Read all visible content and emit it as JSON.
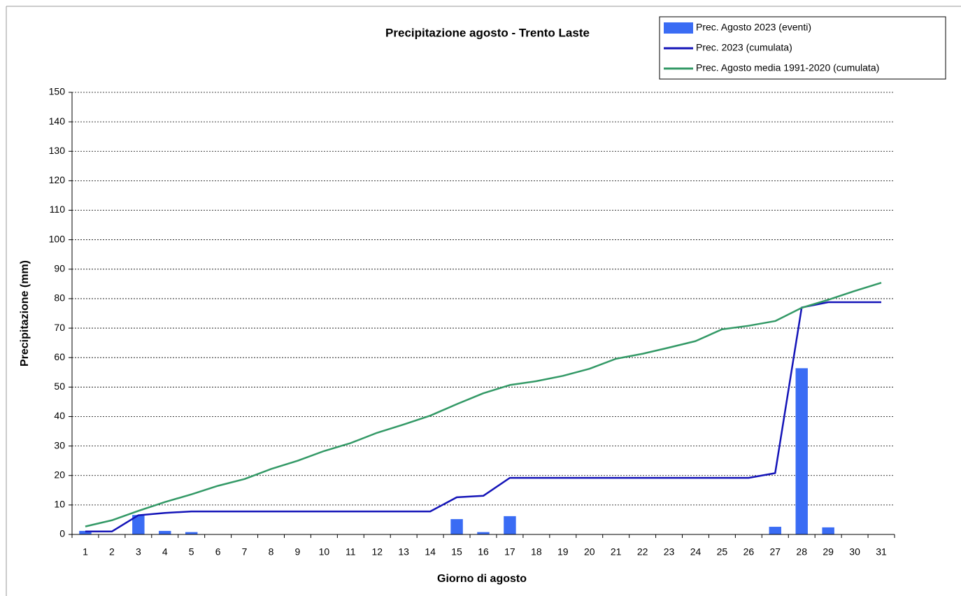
{
  "chart_data": {
    "type": "bar-line",
    "title": "Precipitazione agosto - Trento Laste",
    "x_label": "Giorno di agosto",
    "y_label": "Precipitazione (mm)",
    "categories": [
      "1",
      "2",
      "3",
      "4",
      "5",
      "6",
      "7",
      "8",
      "9",
      "10",
      "11",
      "12",
      "13",
      "14",
      "15",
      "16",
      "17",
      "18",
      "19",
      "20",
      "21",
      "22",
      "23",
      "24",
      "25",
      "26",
      "27",
      "28",
      "29",
      "30",
      "31"
    ],
    "series": [
      {
        "name": "Prec. Agosto 2023 (eventi)",
        "kind": "bar",
        "color": "#3a6cf4",
        "values": [
          1.2,
          0,
          6.6,
          1.2,
          0.8,
          0,
          0,
          0,
          0,
          0,
          0,
          0,
          0,
          0,
          5.2,
          0.8,
          6.2,
          0,
          0,
          0,
          0,
          0,
          0,
          0,
          0,
          0,
          2.6,
          56.4,
          2.4,
          0,
          0
        ]
      },
      {
        "name": "Prec. 2023 (cumulata)",
        "kind": "line",
        "color": "#1414b8",
        "values": [
          1.0,
          1.0,
          6.5,
          7.3,
          7.8,
          7.8,
          7.8,
          7.8,
          7.8,
          7.8,
          7.8,
          7.8,
          7.8,
          7.8,
          12.6,
          13.1,
          19.2,
          19.2,
          19.2,
          19.2,
          19.2,
          19.2,
          19.2,
          19.2,
          19.2,
          19.2,
          20.8,
          77.0,
          78.8,
          78.8,
          78.8
        ]
      },
      {
        "name": "Prec. Agosto media 1991-2020 (cumulata)",
        "kind": "line",
        "color": "#339966",
        "values": [
          2.7,
          4.8,
          8.0,
          11.0,
          13.6,
          16.5,
          18.8,
          22.2,
          25.0,
          28.3,
          31.0,
          34.5,
          37.3,
          40.3,
          44.2,
          47.9,
          50.7,
          52.0,
          53.8,
          56.2,
          59.6,
          61.3,
          63.4,
          65.6,
          69.6,
          70.8,
          72.4,
          76.9,
          79.6,
          82.6,
          85.4
        ]
      }
    ],
    "ylim": [
      0,
      150
    ],
    "yticks": [
      0,
      10,
      20,
      30,
      40,
      50,
      60,
      70,
      80,
      90,
      100,
      110,
      120,
      130,
      140,
      150
    ],
    "grid": true,
    "legend": "top-right"
  }
}
